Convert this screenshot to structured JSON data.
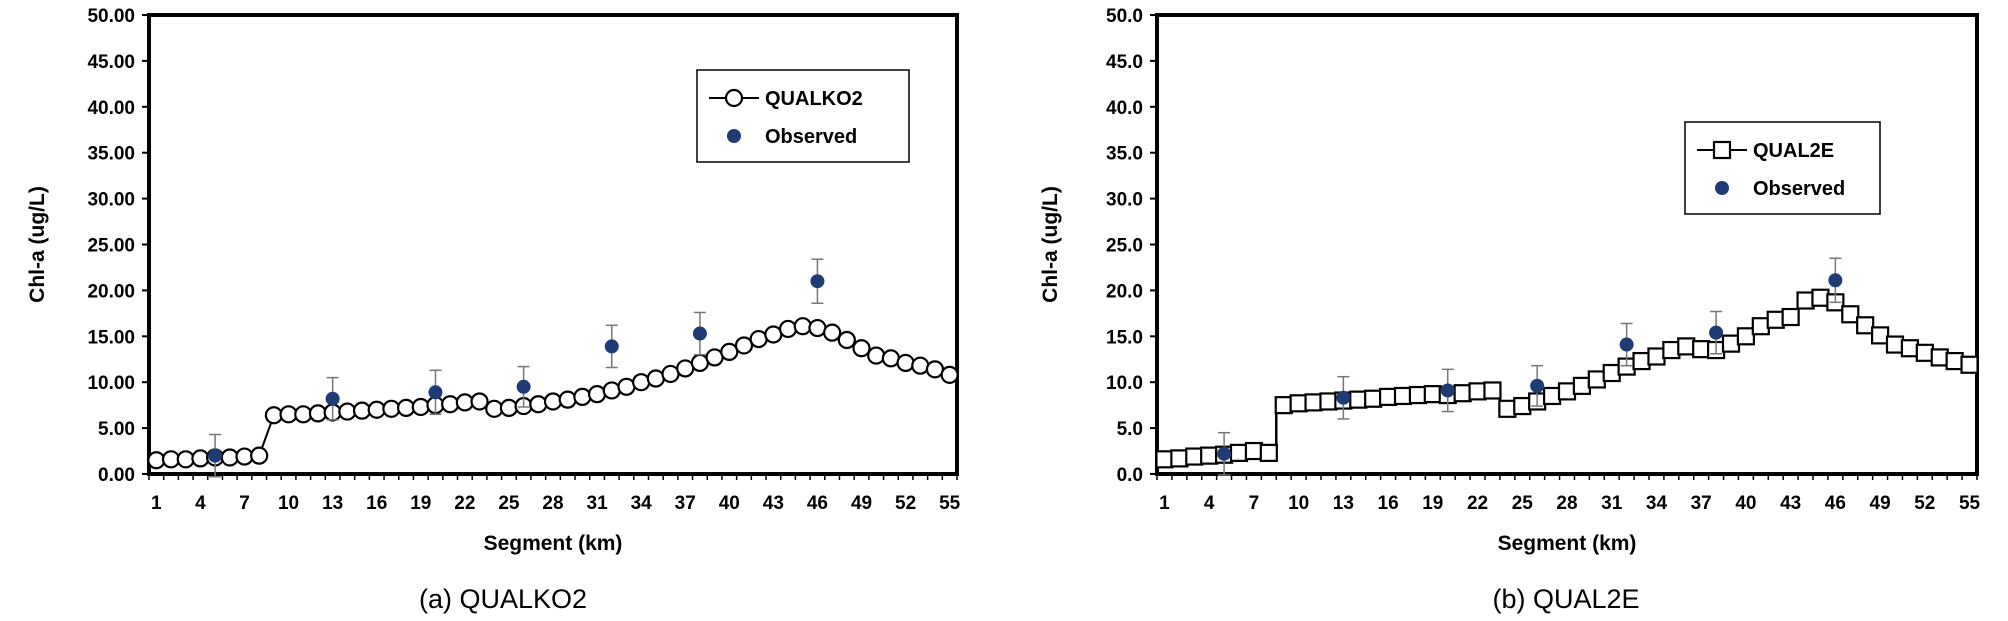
{
  "chart_data": [
    {
      "type": "line",
      "caption": "(a) QUALKO2",
      "xlabel": "Segment (km)",
      "ylabel": "Chl-a (ug/L)",
      "ylim": [
        0,
        50
      ],
      "yticks": [
        "0.00",
        "5.00",
        "10.00",
        "15.00",
        "20.00",
        "25.00",
        "30.00",
        "35.00",
        "40.00",
        "45.00",
        "50.00"
      ],
      "xticks": [
        "1",
        "4",
        "7",
        "10",
        "13",
        "16",
        "19",
        "22",
        "25",
        "28",
        "31",
        "34",
        "37",
        "40",
        "43",
        "46",
        "49",
        "52",
        "55"
      ],
      "legend_position": "top-right",
      "series": [
        {
          "name": "QUALKO2",
          "marker": "circle",
          "x": [
            1,
            2,
            3,
            4,
            5,
            6,
            7,
            8,
            9,
            10,
            11,
            12,
            13,
            14,
            15,
            16,
            17,
            18,
            19,
            20,
            21,
            22,
            23,
            24,
            25,
            26,
            27,
            28,
            29,
            30,
            31,
            32,
            33,
            34,
            35,
            36,
            37,
            38,
            39,
            40,
            41,
            42,
            43,
            44,
            45,
            46,
            47,
            48,
            49,
            50,
            51,
            52,
            53,
            54,
            55
          ],
          "y": [
            1.5,
            1.6,
            1.6,
            1.7,
            1.8,
            1.8,
            1.9,
            2.0,
            6.4,
            6.5,
            6.5,
            6.6,
            6.7,
            6.8,
            6.9,
            7.0,
            7.1,
            7.2,
            7.3,
            7.5,
            7.6,
            7.8,
            7.9,
            7.1,
            7.2,
            7.4,
            7.6,
            7.9,
            8.1,
            8.4,
            8.7,
            9.1,
            9.5,
            10.0,
            10.4,
            10.9,
            11.5,
            12.1,
            12.7,
            13.3,
            14.0,
            14.7,
            15.2,
            15.8,
            16.1,
            15.9,
            15.4,
            14.6,
            13.7,
            12.9,
            12.6,
            12.1,
            11.8,
            11.4,
            10.8
          ]
        },
        {
          "name": "Observed",
          "marker": "filled-circle",
          "x": [
            5,
            13,
            20,
            26,
            32,
            38,
            46
          ],
          "y": [
            2.0,
            8.2,
            8.9,
            9.5,
            13.9,
            15.3,
            21.0
          ],
          "error": [
            2.3,
            2.3,
            2.4,
            2.2,
            2.3,
            2.3,
            2.4
          ]
        }
      ]
    },
    {
      "type": "line",
      "caption": "(b) QUAL2E",
      "xlabel": "Segment (km)",
      "ylabel": "Chl-a (ug/L)",
      "ylim": [
        0,
        50
      ],
      "yticks": [
        "0.0",
        "5.0",
        "10.0",
        "15.0",
        "20.0",
        "25.0",
        "30.0",
        "35.0",
        "40.0",
        "45.0",
        "50.0"
      ],
      "xticks": [
        "1",
        "4",
        "7",
        "10",
        "13",
        "16",
        "19",
        "22",
        "25",
        "28",
        "31",
        "34",
        "37",
        "40",
        "43",
        "46",
        "49",
        "52",
        "55"
      ],
      "legend_position": "top-right",
      "series": [
        {
          "name": "QUAL2E",
          "marker": "square",
          "x": [
            1,
            2,
            3,
            4,
            5,
            6,
            7,
            8,
            9,
            10,
            11,
            12,
            13,
            14,
            15,
            16,
            17,
            18,
            19,
            20,
            21,
            22,
            23,
            24,
            25,
            26,
            27,
            28,
            29,
            30,
            31,
            32,
            33,
            34,
            35,
            36,
            37,
            38,
            39,
            40,
            41,
            42,
            43,
            44,
            45,
            46,
            47,
            48,
            49,
            50,
            51,
            52,
            53,
            54,
            55
          ],
          "y": [
            1.6,
            1.7,
            1.9,
            2.0,
            2.1,
            2.3,
            2.5,
            2.3,
            7.5,
            7.7,
            7.8,
            7.9,
            8.0,
            8.1,
            8.2,
            8.4,
            8.5,
            8.6,
            8.7,
            8.6,
            8.8,
            9.0,
            9.1,
            7.1,
            7.4,
            7.9,
            8.5,
            9.0,
            9.6,
            10.3,
            11.0,
            11.7,
            12.3,
            12.8,
            13.5,
            13.9,
            13.6,
            13.5,
            14.2,
            15.0,
            16.1,
            16.8,
            17.1,
            18.9,
            19.2,
            18.7,
            17.4,
            16.2,
            15.1,
            14.1,
            13.7,
            13.2,
            12.7,
            12.3,
            11.9
          ]
        },
        {
          "name": "Observed",
          "marker": "filled-circle",
          "x": [
            5,
            13,
            20,
            26,
            32,
            38,
            46
          ],
          "y": [
            2.2,
            8.3,
            9.1,
            9.6,
            14.1,
            15.4,
            21.1
          ],
          "error": [
            2.3,
            2.3,
            2.3,
            2.2,
            2.3,
            2.3,
            2.4
          ]
        }
      ]
    }
  ],
  "colors": {
    "axis": "#000000",
    "observed": "#1F3B73",
    "marker_fill": "#ffffff"
  }
}
